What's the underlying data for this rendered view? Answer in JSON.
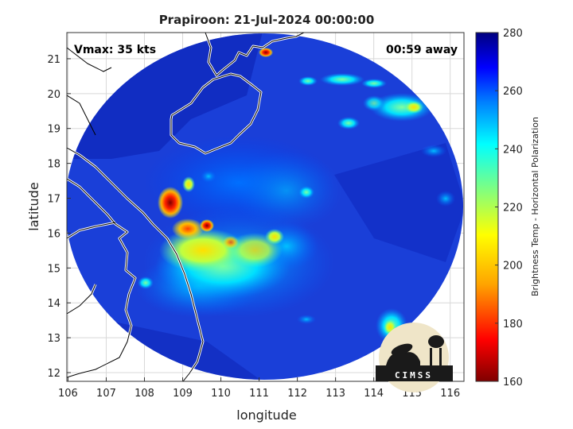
{
  "title": "Prapiroon: 21-Jul-2024 00:00:00",
  "vmax_label": "Vmax: 35 kts",
  "time_away_label": "00:59 away",
  "x_axis": {
    "label": "longitude",
    "min": 105.97,
    "max": 116.36,
    "ticks": [
      "106",
      "107",
      "108",
      "109",
      "110",
      "111",
      "112",
      "113",
      "114",
      "115",
      "116"
    ]
  },
  "y_axis": {
    "label": "latitude",
    "min": 11.75,
    "max": 21.75,
    "ticks": [
      "12",
      "13",
      "14",
      "15",
      "16",
      "17",
      "18",
      "19",
      "20",
      "21"
    ]
  },
  "colorbar": {
    "label": "Brightness Temp - Horizontal Polarization",
    "min": 160,
    "max": 280,
    "ticks": [
      "160",
      "180",
      "200",
      "220",
      "240",
      "260",
      "280"
    ]
  },
  "logo_text": "CIMSS",
  "grid": true,
  "colors": {
    "swath_background": "#1a3fd8",
    "coastline": "#ffffff"
  },
  "chart_data": {
    "type": "heatmap",
    "variable": "Brightness Temp - Horizontal Polarization",
    "units_range": [
      160,
      280
    ],
    "swath_center": {
      "lon": 110.8,
      "lat": 16.35
    },
    "features": [
      {
        "lon": 108.6,
        "lat": 16.8,
        "value": 165
      },
      {
        "lon": 108.4,
        "lat": 17.0,
        "value": 185
      },
      {
        "lon": 109.5,
        "lat": 16.2,
        "value": 185
      },
      {
        "lon": 108.9,
        "lat": 16.1,
        "value": 190
      },
      {
        "lon": 110.0,
        "lat": 15.4,
        "value": 205
      },
      {
        "lon": 111.0,
        "lat": 15.6,
        "value": 210
      },
      {
        "lon": 111.1,
        "lat": 21.1,
        "value": 175
      },
      {
        "lon": 114.5,
        "lat": 12.9,
        "value": 220
      },
      {
        "lon": 115.2,
        "lat": 19.8,
        "value": 220
      },
      {
        "lon": 112.4,
        "lat": 17.0,
        "value": 230
      }
    ]
  }
}
